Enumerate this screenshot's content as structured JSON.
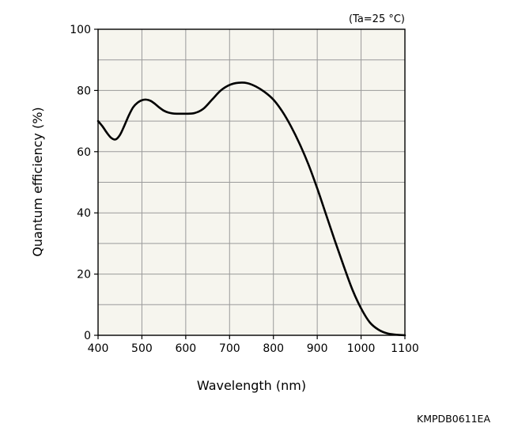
{
  "chart_data": {
    "type": "line",
    "xlabel": "Wavelength (nm)",
    "ylabel": "Quantum efficiency (%)",
    "annotation": "(Ta=25 °C)",
    "figure_code": "KMPDB0611EA",
    "xlim": [
      400,
      1100
    ],
    "ylim": [
      0,
      100
    ],
    "x_ticks": [
      400,
      500,
      600,
      700,
      800,
      900,
      1000,
      1100
    ],
    "y_ticks": [
      0,
      20,
      40,
      60,
      80,
      100
    ],
    "x_grid_step": 100,
    "y_grid_step": 10,
    "grid": true,
    "colors": {
      "plot_background": "#f6f5ee",
      "grid": "#9a9a9a",
      "line": "#000000",
      "frame": "#000000"
    },
    "series": [
      {
        "x": [
          400,
          410,
          420,
          430,
          440,
          450,
          460,
          470,
          480,
          490,
          500,
          510,
          520,
          530,
          540,
          550,
          560,
          570,
          580,
          590,
          600,
          620,
          640,
          660,
          680,
          700,
          720,
          740,
          760,
          780,
          800,
          820,
          840,
          860,
          880,
          900,
          920,
          940,
          960,
          980,
          1000,
          1020,
          1040,
          1060,
          1080,
          1090,
          1100
        ],
        "y": [
          70,
          68.3,
          66.2,
          64.5,
          64,
          65.5,
          68.5,
          71.8,
          74.5,
          76,
          76.8,
          77,
          76.6,
          75.6,
          74.4,
          73.4,
          72.8,
          72.5,
          72.4,
          72.4,
          72.4,
          72.6,
          74,
          77,
          80,
          81.8,
          82.5,
          82.4,
          81.3,
          79.5,
          77,
          73.2,
          68.3,
          62.5,
          55.8,
          48,
          39.5,
          31,
          22.8,
          15,
          8.8,
          4.2,
          1.8,
          0.6,
          0.2,
          0.1,
          0
        ]
      }
    ]
  }
}
